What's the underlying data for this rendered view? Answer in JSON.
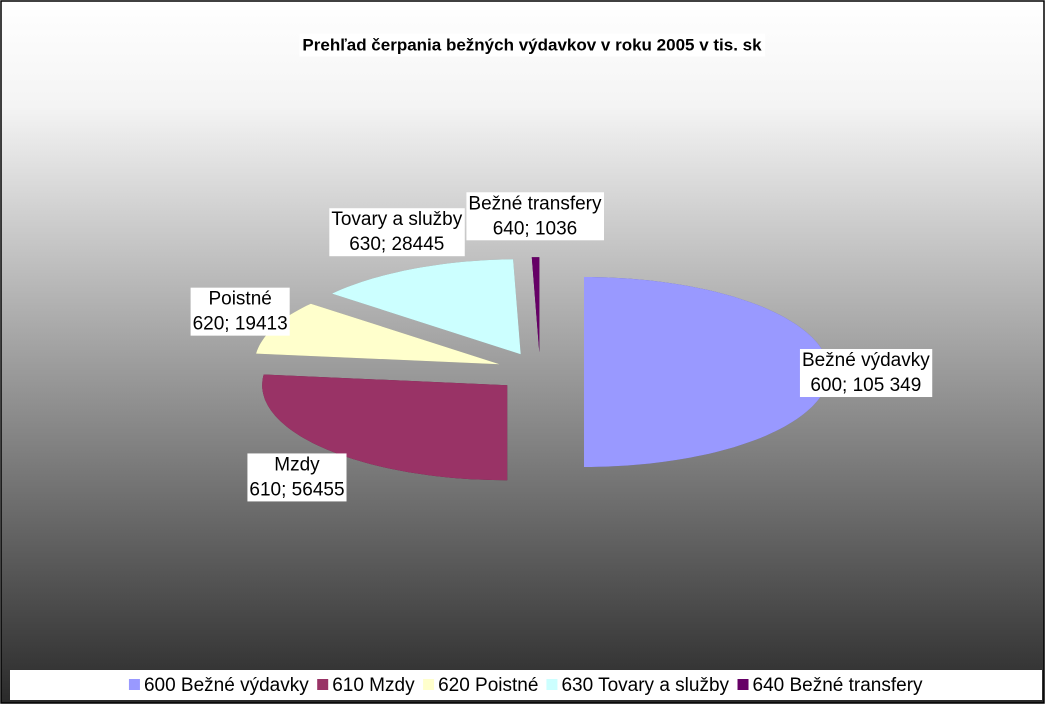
{
  "chart_data": {
    "type": "pie3d",
    "title": "Prehľad čerpania bežných výdavkov v roku 2005 v tis. sk",
    "categories": [
      "600 Bežné výdavky",
      "610 Mzdy",
      "620 Poistné",
      "630 Tovary a služby",
      "640 Bežné transfery"
    ],
    "label_names": [
      "Bežné výdavky",
      "Mzdy",
      "Poistné",
      "Tovary a služby",
      "Bežné transfery"
    ],
    "values": [
      105349,
      56455,
      19413,
      28445,
      1036
    ],
    "value_labels": [
      "600; 105 349",
      "610; 56455",
      "620; 19413",
      "630; 28445",
      "640; 1036"
    ],
    "colors": [
      "#9999ff",
      "#993366",
      "#ffffcc",
      "#ccffff",
      "#660066"
    ],
    "legend": "bottom"
  }
}
